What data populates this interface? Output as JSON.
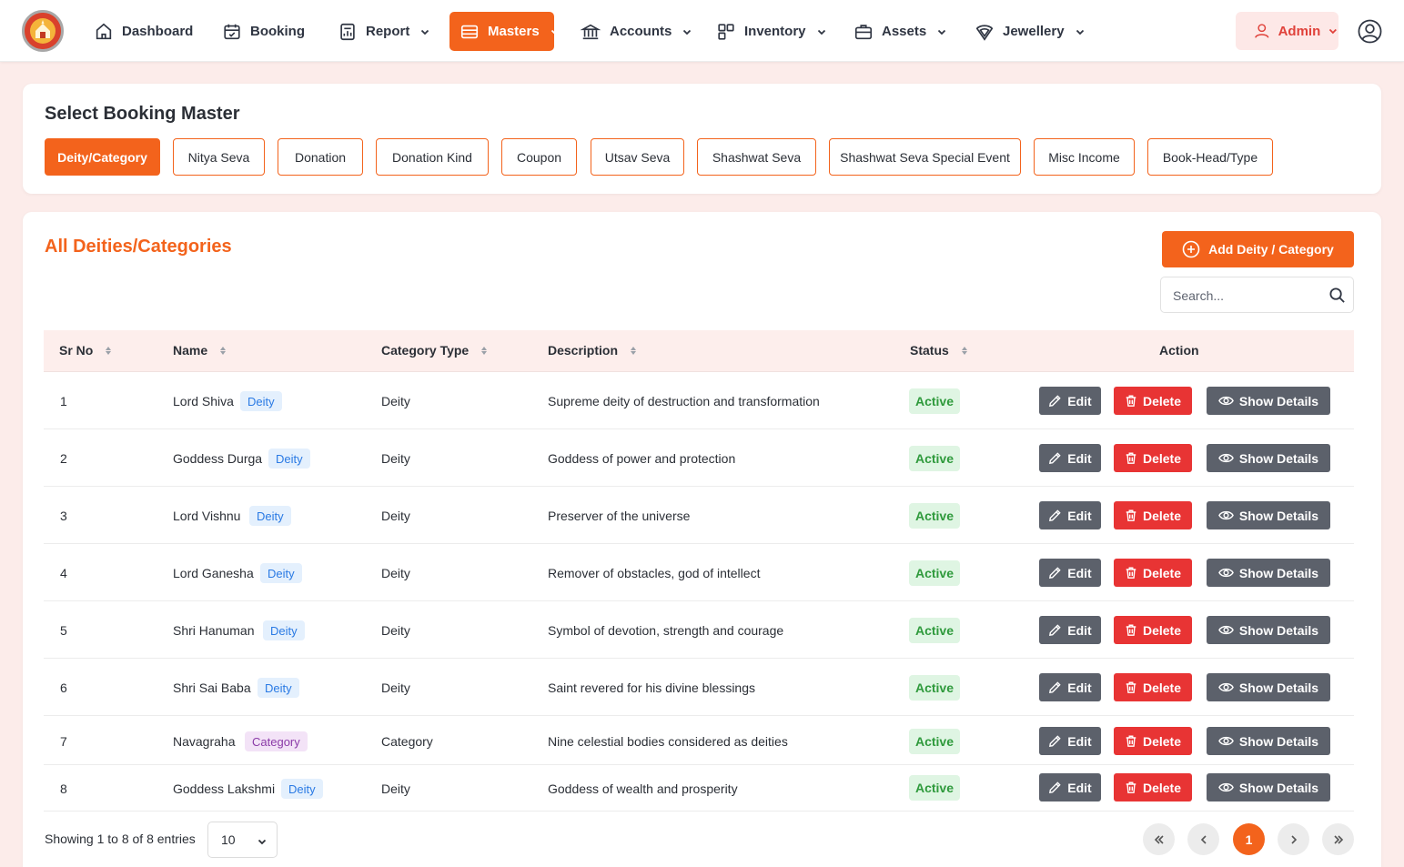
{
  "nav": {
    "items": [
      {
        "label": "Dashboard",
        "icon": "home-icon",
        "dropdown": false
      },
      {
        "label": "Booking",
        "icon": "calendar-icon",
        "dropdown": false
      },
      {
        "label": "Report",
        "icon": "report-icon",
        "dropdown": true
      },
      {
        "label": "Masters",
        "icon": "masters-icon",
        "dropdown": true,
        "active": true
      },
      {
        "label": "Accounts",
        "icon": "bank-icon",
        "dropdown": true
      },
      {
        "label": "Inventory",
        "icon": "inventory-icon",
        "dropdown": true
      },
      {
        "label": "Assets",
        "icon": "briefcase-icon",
        "dropdown": true
      },
      {
        "label": "Jewellery",
        "icon": "diamond-icon",
        "dropdown": true
      }
    ],
    "admin_label": "Admin"
  },
  "master_selector": {
    "title": "Select Booking Master",
    "buttons": [
      "Deity/Category",
      "Nitya Seva",
      "Donation",
      "Donation Kind",
      "Coupon",
      "Utsav Seva",
      "Shashwat Seva",
      "Shashwat Seva Special Event",
      "Misc Income",
      "Book-Head/Type"
    ],
    "active_index": 0
  },
  "list": {
    "title": "All Deities/Categories",
    "add_label": "Add Deity / Category",
    "search_placeholder": "Search...",
    "columns": [
      "Sr No",
      "Name",
      "Category Type",
      "Description",
      "Status",
      "Action"
    ],
    "actions": {
      "edit": "Edit",
      "delete": "Delete",
      "show": "Show Details"
    },
    "rows": [
      {
        "sr": "1",
        "name": "Lord Shiva",
        "tag": "Deity",
        "type": "Deity",
        "description": "Supreme deity of destruction and transformation",
        "status": "Active"
      },
      {
        "sr": "2",
        "name": "Goddess Durga",
        "tag": "Deity",
        "type": "Deity",
        "description": "Goddess of power and protection",
        "status": "Active"
      },
      {
        "sr": "3",
        "name": "Lord Vishnu",
        "tag": "Deity",
        "type": "Deity",
        "description": "Preserver of the universe",
        "status": "Active"
      },
      {
        "sr": "4",
        "name": "Lord Ganesha",
        "tag": "Deity",
        "type": "Deity",
        "description": "Remover of obstacles, god of intellect",
        "status": "Active"
      },
      {
        "sr": "5",
        "name": "Shri Hanuman",
        "tag": "Deity",
        "type": "Deity",
        "description": "Symbol of devotion, strength and courage",
        "status": "Active"
      },
      {
        "sr": "6",
        "name": "Shri Sai Baba",
        "tag": "Deity",
        "type": "Deity",
        "description": "Saint revered for his divine blessings",
        "status": "Active"
      },
      {
        "sr": "7",
        "name": "Navagraha",
        "tag": "Category",
        "type": "Category",
        "description": "Nine celestial bodies considered as deities",
        "status": "Active"
      },
      {
        "sr": "8",
        "name": "Goddess Lakshmi",
        "tag": "Deity",
        "type": "Deity",
        "description": "Goddess of wealth and prosperity",
        "status": "Active"
      }
    ],
    "footer": {
      "showing": "Showing 1 to 8 of 8 entries",
      "page_length": "10",
      "current_page": "1"
    }
  },
  "colors": {
    "accent": "#f3631c",
    "danger": "#e83434",
    "neutral_button": "#5c616b",
    "active_status": "#2f9a3c",
    "background": "#fcecea"
  }
}
